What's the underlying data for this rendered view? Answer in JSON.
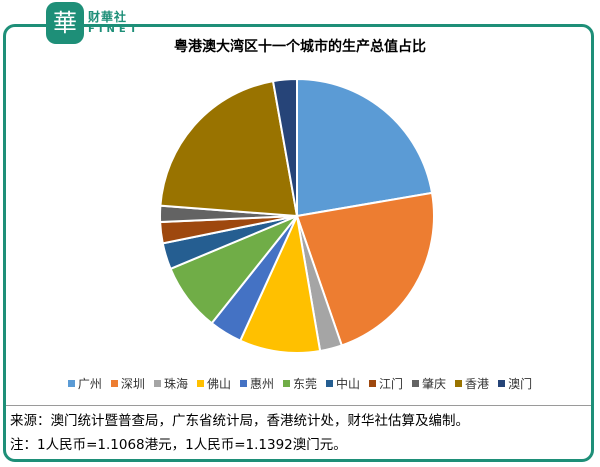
{
  "brand": {
    "badge": "華",
    "name_cn": "财華社",
    "name_en": "FINET",
    "color": "#1e8f78"
  },
  "chart_data": {
    "type": "pie",
    "title": "粤港澳大湾区十一个城市的生产总值占比",
    "slices": [
      {
        "label": "广州",
        "value": 22.3,
        "color": "#5b9bd5"
      },
      {
        "label": "深圳",
        "value": 22.4,
        "color": "#ed7d31"
      },
      {
        "label": "珠海",
        "value": 2.6,
        "color": "#a5a5a5"
      },
      {
        "label": "佛山",
        "value": 9.5,
        "color": "#ffc000"
      },
      {
        "label": "惠州",
        "value": 3.9,
        "color": "#4472c4"
      },
      {
        "label": "东莞",
        "value": 8.0,
        "color": "#70ad47"
      },
      {
        "label": "中山",
        "value": 3.1,
        "color": "#255e91"
      },
      {
        "label": "江门",
        "value": 2.5,
        "color": "#9e480e"
      },
      {
        "label": "肇庆",
        "value": 1.9,
        "color": "#636363"
      },
      {
        "label": "香港",
        "value": 21.0,
        "color": "#997300"
      },
      {
        "label": "澳门",
        "value": 2.8,
        "color": "#264478"
      }
    ],
    "legend_position": "bottom"
  },
  "notes": {
    "source": "来源：澳门统计暨普查局，广东省统计局，香港统计处，财华社估算及编制。",
    "fx": "注：1人民币=1.1068港元，1人民币=1.1392澳门元。"
  }
}
